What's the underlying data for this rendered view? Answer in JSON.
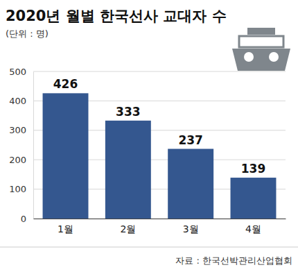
{
  "chart_data": {
    "type": "bar",
    "title": "2020년 월별 한국선사 교대자 수",
    "subtitle": "(단위 : 명)",
    "source": "자료 : 한국선박관리산업협회",
    "categories": [
      "1월",
      "2월",
      "3월",
      "4월"
    ],
    "values": [
      426,
      333,
      237,
      139
    ],
    "color": "#34578f",
    "ylim": [
      0,
      500
    ],
    "yticks": [
      0,
      100,
      200,
      300,
      400,
      500
    ],
    "grid": true,
    "data_labels": true
  }
}
